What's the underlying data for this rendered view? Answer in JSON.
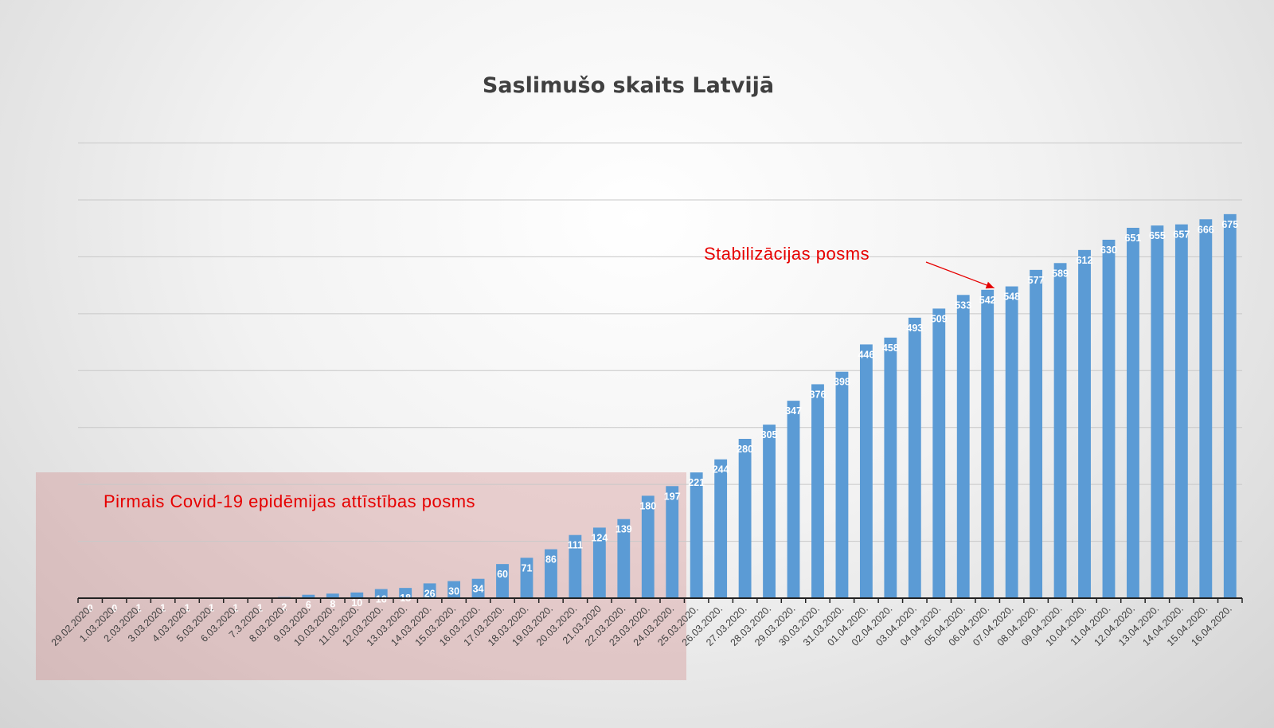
{
  "chart_data": {
    "type": "bar",
    "title": "Saslimušo skaits Latvijā",
    "xlabel": "",
    "ylabel": "",
    "ylim": [
      0,
      800
    ],
    "grid": true,
    "categories": [
      "29.02.2020.",
      "1.03.2020.",
      "2.03.2020.",
      "3.03.2020.",
      "4.03.2020.",
      "5.03.2020.",
      "6.03.2020.",
      "7.3.2020.",
      "8.03.2020.",
      "9.03.2020.",
      "10.03.2020.",
      "11.03.2020.",
      "12.03.2020.",
      "13.03.2020.",
      "14.03.2020.",
      "15.03.2020.",
      "16.03.2020.",
      "17.03.2020.",
      "18.03.2020.",
      "19.03.2020.",
      "20.03.2020.",
      "21.03.2020",
      "22.03.2020.",
      "23.03.2020.",
      "24.03.2020.",
      "25.03.2020.",
      "26.03.2020.",
      "27.03.2020.",
      "28.03.2020.",
      "29.03.2020.",
      "30.03.2020.",
      "31.03.2020.",
      "01.04.2020.",
      "02.04.2020.",
      "03.04.2020.",
      "04.04.2020.",
      "05.04.2020.",
      "06.04.2020.",
      "07.04.2020.",
      "08.04.2020.",
      "09.04.2020.",
      "10.04.2020.",
      "11.04.2020.",
      "12.04.2020.",
      "13.04.2020.",
      "14.04.2020.",
      "15.04.2020.",
      "16.04.2020."
    ],
    "values": [
      0,
      0,
      1,
      1,
      1,
      1,
      1,
      1,
      2,
      6,
      8,
      10,
      16,
      18,
      26,
      30,
      34,
      60,
      71,
      86,
      111,
      124,
      139,
      180,
      197,
      221,
      244,
      280,
      305,
      347,
      376,
      398,
      446,
      458,
      493,
      509,
      533,
      542,
      548,
      577,
      589,
      612,
      630,
      651,
      655,
      657,
      666,
      675
    ],
    "bar_color": "#5b9bd5",
    "label_color": "#ffffff",
    "annotations": [
      {
        "text": "Pirmais Covid-19 epidēmijas attīstības posms",
        "color": "#e60000",
        "highlight_range": [
          "29.02.2020.",
          "24.03.2020."
        ],
        "highlight_color": "#cd7878"
      },
      {
        "text": "Stabilizācijas posms",
        "color": "#e60000",
        "arrow_to": "07.04.2020."
      }
    ]
  }
}
